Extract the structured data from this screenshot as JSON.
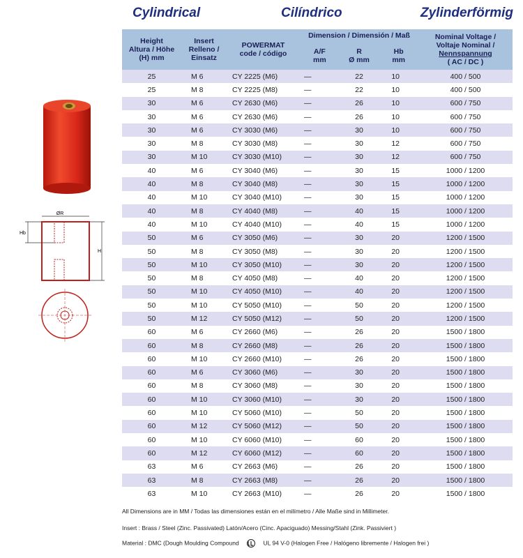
{
  "header": {
    "titles": [
      "Cylindrical",
      "Cilíndrico",
      "Zylinderförmig"
    ]
  },
  "diagram": {
    "labels": [
      "ØR",
      "Hb",
      "H"
    ]
  },
  "table": {
    "columns": [
      [
        "Height",
        "Altura / Höhe",
        "(H) mm"
      ],
      [
        "Insert",
        "Relleno /",
        "Einsatz"
      ],
      [
        "POWERMAT",
        "code / código"
      ],
      [
        "Nominal Voltage /",
        "Voltaje Nominal /",
        "Nennspannung",
        "( AC / DC )"
      ]
    ],
    "group": "Dimension / Dimensión / Maß",
    "subcolumns": [
      [
        "A/F",
        "mm"
      ],
      [
        "R",
        "Ø mm"
      ],
      [
        "Hb",
        "mm"
      ]
    ],
    "rows": [
      [
        "25",
        "M 6",
        "CY 2225 (M6)",
        "—",
        "22",
        "10",
        "400 / 500"
      ],
      [
        "25",
        "M 8",
        "CY 2225 (M8)",
        "—",
        "22",
        "10",
        "400 / 500"
      ],
      [
        "30",
        "M 6",
        "CY 2630 (M6)",
        "—",
        "26",
        "10",
        "600 / 750"
      ],
      [
        "30",
        "M 6",
        "CY 2630 (M6)",
        "—",
        "26",
        "10",
        "600 / 750"
      ],
      [
        "30",
        "M 6",
        "CY 3030 (M6)",
        "—",
        "30",
        "10",
        "600 / 750"
      ],
      [
        "30",
        "M 8",
        "CY 3030 (M8)",
        "—",
        "30",
        "12",
        "600 / 750"
      ],
      [
        "30",
        "M 10",
        "CY 3030 (M10)",
        "—",
        "30",
        "12",
        "600 / 750"
      ],
      [
        "40",
        "M 6",
        "CY 3040 (M6)",
        "—",
        "30",
        "15",
        "1000 / 1200"
      ],
      [
        "40",
        "M 8",
        "CY 3040 (M8)",
        "—",
        "30",
        "15",
        "1000 / 1200"
      ],
      [
        "40",
        "M 10",
        "CY 3040 (M10)",
        "—",
        "30",
        "15",
        "1000 / 1200"
      ],
      [
        "40",
        "M 8",
        "CY 4040 (M8)",
        "—",
        "40",
        "15",
        "1000 / 1200"
      ],
      [
        "40",
        "M 10",
        "CY 4040 (M10)",
        "—",
        "40",
        "15",
        "1000 / 1200"
      ],
      [
        "50",
        "M 6",
        "CY 3050 (M6)",
        "—",
        "30",
        "20",
        "1200 / 1500"
      ],
      [
        "50",
        "M 8",
        "CY 3050 (M8)",
        "—",
        "30",
        "20",
        "1200 / 1500"
      ],
      [
        "50",
        "M 10",
        "CY 3050 (M10)",
        "—",
        "30",
        "20",
        "1200 / 1500"
      ],
      [
        "50",
        "M 8",
        "CY 4050 (M8)",
        "—",
        "40",
        "20",
        "1200 / 1500"
      ],
      [
        "50",
        "M 10",
        "CY 4050 (M10)",
        "—",
        "40",
        "20",
        "1200 / 1500"
      ],
      [
        "50",
        "M 10",
        "CY 5050 (M10)",
        "—",
        "50",
        "20",
        "1200 / 1500"
      ],
      [
        "50",
        "M 12",
        "CY 5050 (M12)",
        "—",
        "50",
        "20",
        "1200 / 1500"
      ],
      [
        "60",
        "M 6",
        "CY 2660 (M6)",
        "—",
        "26",
        "20",
        "1500 / 1800"
      ],
      [
        "60",
        "M 8",
        "CY 2660 (M8)",
        "—",
        "26",
        "20",
        "1500 / 1800"
      ],
      [
        "60",
        "M 10",
        "CY 2660 (M10)",
        "—",
        "26",
        "20",
        "1500 / 1800"
      ],
      [
        "60",
        "M 6",
        "CY 3060 (M6)",
        "—",
        "30",
        "20",
        "1500 / 1800"
      ],
      [
        "60",
        "M 8",
        "CY 3060 (M8)",
        "—",
        "30",
        "20",
        "1500 / 1800"
      ],
      [
        "60",
        "M 10",
        "CY 3060 (M10)",
        "—",
        "30",
        "20",
        "1500 / 1800"
      ],
      [
        "60",
        "M 10",
        "CY 5060 (M10)",
        "—",
        "50",
        "20",
        "1500 / 1800"
      ],
      [
        "60",
        "M 12",
        "CY 5060 (M12)",
        "—",
        "50",
        "20",
        "1500 / 1800"
      ],
      [
        "60",
        "M 10",
        "CY 6060 (M10)",
        "—",
        "60",
        "20",
        "1500 / 1800"
      ],
      [
        "60",
        "M 12",
        "CY 6060 (M12)",
        "—",
        "60",
        "20",
        "1500 / 1800"
      ],
      [
        "63",
        "M 6",
        "CY 2663 (M6)",
        "—",
        "26",
        "20",
        "1500 / 1800"
      ],
      [
        "63",
        "M 8",
        "CY 2663 (M8)",
        "—",
        "26",
        "20",
        "1500 / 1800"
      ],
      [
        "63",
        "M 10",
        "CY 2663 (M10)",
        "—",
        "26",
        "20",
        "1500 / 1800"
      ]
    ]
  },
  "footer": {
    "dimensions": "All Dimensions are in MM / Todas las dimensiones están en el milímetro / Alle Maße sind in Millimeter.",
    "insert": "Insert  : Brass / Steel (Zinc. Passivated)  Latón/Acero (Cinc. Apaciguado)  Messing/Stahl (Zink. Passiviert )",
    "material": "Material : DMC (Dough Moulding Compound",
    "ul": "UL 94 V-0  (Halogen Free / Halógeno libremente /  Halogen frei )"
  }
}
